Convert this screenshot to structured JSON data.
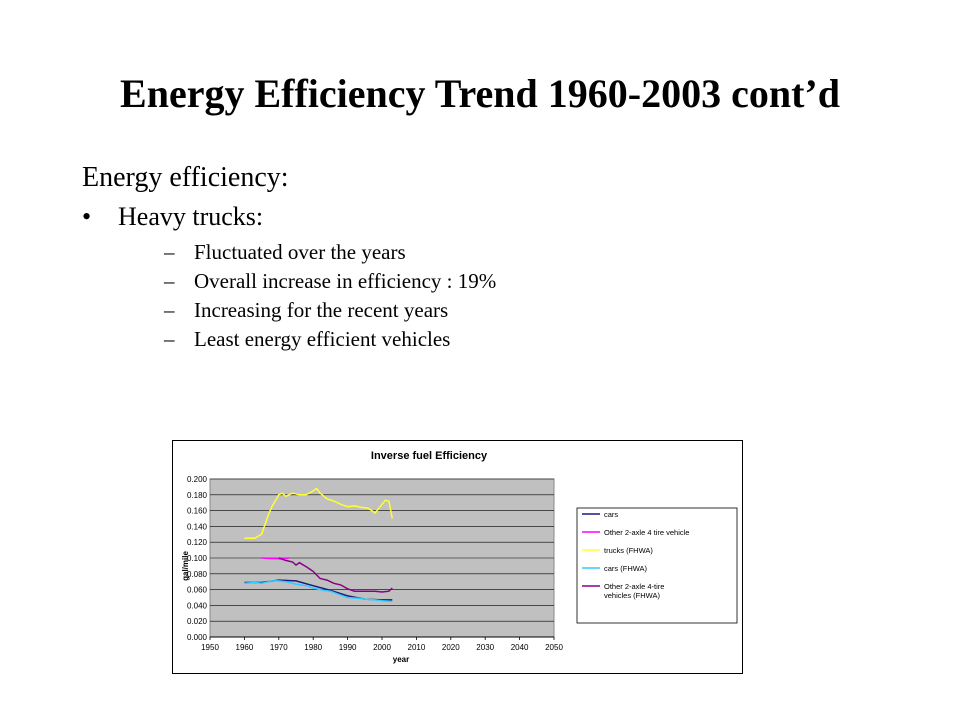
{
  "slide": {
    "title": "Energy Efficiency Trend 1960-2003 cont’d",
    "intro": "Energy efficiency:",
    "bullet": {
      "label": "Heavy trucks:",
      "marker": "•",
      "items": [
        "Fluctuated over the years",
        "Overall increase in efficiency : 19%",
        "Increasing for the recent years",
        "Least energy efficient vehicles"
      ],
      "sub_marker": "–"
    }
  },
  "chart_data": {
    "type": "line",
    "title": "Inverse fuel Efficiency",
    "xlabel": "year",
    "ylabel": "gal/mile",
    "xlim": [
      1950,
      2050
    ],
    "ylim": [
      0,
      0.2
    ],
    "xticks": [
      "1950",
      "1960",
      "1970",
      "1980",
      "1990",
      "2000",
      "2010",
      "2020",
      "2030",
      "2040",
      "2050"
    ],
    "yticks": [
      "0.000",
      "0.020",
      "0.040",
      "0.060",
      "0.080",
      "0.100",
      "0.120",
      "0.140",
      "0.160",
      "0.180",
      "0.200"
    ],
    "grid": true,
    "legend_position": "right",
    "plot_background": "#c0c0c0",
    "series": [
      {
        "name": "cars",
        "color": "#1a1a80",
        "points": [
          [
            1960,
            0.069
          ],
          [
            1965,
            0.069
          ],
          [
            1970,
            0.072
          ],
          [
            1975,
            0.071
          ],
          [
            1980,
            0.065
          ],
          [
            1985,
            0.059
          ],
          [
            1990,
            0.052
          ],
          [
            1995,
            0.048
          ],
          [
            2000,
            0.047
          ],
          [
            2003,
            0.047
          ]
        ]
      },
      {
        "name": "Other 2-axle 4 tire vehicle",
        "color": "#ff00ff",
        "points": [
          [
            1965,
            0.1
          ],
          [
            1970,
            0.099
          ],
          [
            1973,
            0.1
          ]
        ]
      },
      {
        "name": "trucks (FHWA)",
        "color": "#ffff33",
        "points": [
          [
            1960,
            0.125
          ],
          [
            1963,
            0.125
          ],
          [
            1965,
            0.13
          ],
          [
            1967,
            0.155
          ],
          [
            1968,
            0.165
          ],
          [
            1970,
            0.18
          ],
          [
            1971,
            0.182
          ],
          [
            1972,
            0.178
          ],
          [
            1974,
            0.182
          ],
          [
            1976,
            0.18
          ],
          [
            1978,
            0.18
          ],
          [
            1980,
            0.185
          ],
          [
            1981,
            0.188
          ],
          [
            1982,
            0.182
          ],
          [
            1984,
            0.175
          ],
          [
            1986,
            0.172
          ],
          [
            1988,
            0.168
          ],
          [
            1990,
            0.165
          ],
          [
            1992,
            0.166
          ],
          [
            1994,
            0.164
          ],
          [
            1996,
            0.163
          ],
          [
            1998,
            0.157
          ],
          [
            2000,
            0.168
          ],
          [
            2001,
            0.173
          ],
          [
            2002,
            0.172
          ],
          [
            2003,
            0.15
          ]
        ]
      },
      {
        "name": "cars (FHWA)",
        "color": "#33ccff",
        "points": [
          [
            1960,
            0.068
          ],
          [
            1963,
            0.069
          ],
          [
            1965,
            0.068
          ],
          [
            1968,
            0.071
          ],
          [
            1970,
            0.071
          ],
          [
            1972,
            0.07
          ],
          [
            1975,
            0.067
          ],
          [
            1978,
            0.065
          ],
          [
            1980,
            0.062
          ],
          [
            1983,
            0.059
          ],
          [
            1985,
            0.058
          ],
          [
            1988,
            0.053
          ],
          [
            1990,
            0.05
          ],
          [
            1993,
            0.049
          ],
          [
            1995,
            0.048
          ],
          [
            1998,
            0.047
          ],
          [
            2000,
            0.046
          ],
          [
            2003,
            0.045
          ]
        ]
      },
      {
        "name": "Other 2-axle 4-tire vehicles (FHWA)",
        "color": "#880088",
        "points": [
          [
            1970,
            0.1
          ],
          [
            1972,
            0.097
          ],
          [
            1974,
            0.095
          ],
          [
            1975,
            0.091
          ],
          [
            1976,
            0.094
          ],
          [
            1978,
            0.089
          ],
          [
            1980,
            0.083
          ],
          [
            1982,
            0.074
          ],
          [
            1984,
            0.072
          ],
          [
            1986,
            0.068
          ],
          [
            1988,
            0.066
          ],
          [
            1990,
            0.061
          ],
          [
            1992,
            0.058
          ],
          [
            1995,
            0.058
          ],
          [
            1998,
            0.058
          ],
          [
            2000,
            0.057
          ],
          [
            2002,
            0.058
          ],
          [
            2003,
            0.062
          ]
        ]
      }
    ]
  }
}
